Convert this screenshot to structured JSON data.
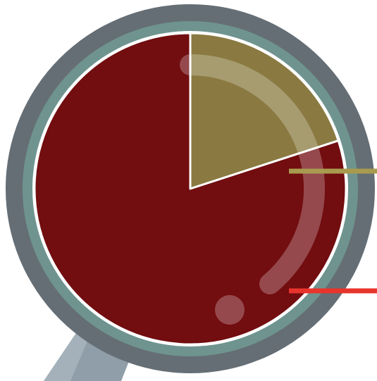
{
  "chart_data": {
    "type": "pie",
    "values": [
      20,
      80
    ],
    "colors": [
      "#8a7a41",
      "#720d10"
    ]
  }
}
